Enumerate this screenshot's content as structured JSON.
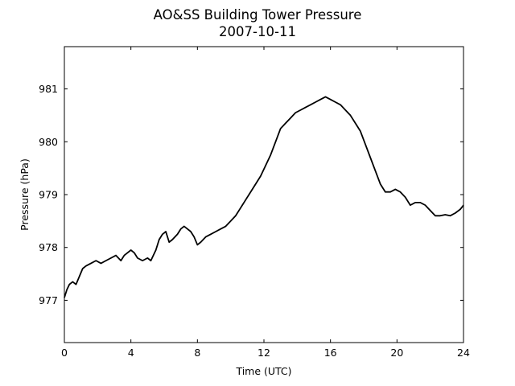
{
  "chart_data": {
    "type": "line",
    "title": "AO&SS Building Tower Pressure",
    "subtitle": "2007-10-11",
    "xlabel": "Time (UTC)",
    "ylabel": "Pressure (hPa)",
    "xlim": [
      0,
      24
    ],
    "ylim": [
      976.2,
      981.8
    ],
    "x_ticks": [
      0,
      4,
      8,
      12,
      16,
      20,
      24
    ],
    "y_ticks": [
      977,
      978,
      979,
      980,
      981
    ],
    "grid": false,
    "series": [
      {
        "color": "#000000",
        "points": [
          [
            0.0,
            977.05
          ],
          [
            0.15,
            977.2
          ],
          [
            0.3,
            977.3
          ],
          [
            0.5,
            977.35
          ],
          [
            0.7,
            977.3
          ],
          [
            0.9,
            977.45
          ],
          [
            1.1,
            977.6
          ],
          [
            1.3,
            977.65
          ],
          [
            1.6,
            977.7
          ],
          [
            1.9,
            977.75
          ],
          [
            2.2,
            977.7
          ],
          [
            2.5,
            977.75
          ],
          [
            2.8,
            977.8
          ],
          [
            3.1,
            977.85
          ],
          [
            3.4,
            977.75
          ],
          [
            3.6,
            977.85
          ],
          [
            3.8,
            977.9
          ],
          [
            4.0,
            977.95
          ],
          [
            4.2,
            977.9
          ],
          [
            4.4,
            977.8
          ],
          [
            4.7,
            977.75
          ],
          [
            5.0,
            977.8
          ],
          [
            5.2,
            977.75
          ],
          [
            5.5,
            977.95
          ],
          [
            5.7,
            978.15
          ],
          [
            5.9,
            978.25
          ],
          [
            6.1,
            978.3
          ],
          [
            6.3,
            978.1
          ],
          [
            6.5,
            978.15
          ],
          [
            6.8,
            978.25
          ],
          [
            7.0,
            978.35
          ],
          [
            7.2,
            978.4
          ],
          [
            7.4,
            978.35
          ],
          [
            7.6,
            978.3
          ],
          [
            7.8,
            978.2
          ],
          [
            8.0,
            978.05
          ],
          [
            8.2,
            978.1
          ],
          [
            8.5,
            978.2
          ],
          [
            8.8,
            978.25
          ],
          [
            9.1,
            978.3
          ],
          [
            9.4,
            978.35
          ],
          [
            9.7,
            978.4
          ],
          [
            10.0,
            978.5
          ],
          [
            10.3,
            978.6
          ],
          [
            10.6,
            978.75
          ],
          [
            10.9,
            978.9
          ],
          [
            11.2,
            979.05
          ],
          [
            11.5,
            979.2
          ],
          [
            11.8,
            979.35
          ],
          [
            12.1,
            979.55
          ],
          [
            12.4,
            979.75
          ],
          [
            12.7,
            980.0
          ],
          [
            13.0,
            980.25
          ],
          [
            13.3,
            980.35
          ],
          [
            13.6,
            980.45
          ],
          [
            13.9,
            980.55
          ],
          [
            14.2,
            980.6
          ],
          [
            14.5,
            980.65
          ],
          [
            14.8,
            980.7
          ],
          [
            15.1,
            980.75
          ],
          [
            15.4,
            980.8
          ],
          [
            15.7,
            980.85
          ],
          [
            16.0,
            980.8
          ],
          [
            16.3,
            980.75
          ],
          [
            16.6,
            980.7
          ],
          [
            16.9,
            980.6
          ],
          [
            17.2,
            980.5
          ],
          [
            17.5,
            980.35
          ],
          [
            17.8,
            980.2
          ],
          [
            18.1,
            979.95
          ],
          [
            18.4,
            979.7
          ],
          [
            18.7,
            979.45
          ],
          [
            19.0,
            979.2
          ],
          [
            19.3,
            979.05
          ],
          [
            19.6,
            979.05
          ],
          [
            19.9,
            979.1
          ],
          [
            20.2,
            979.05
          ],
          [
            20.5,
            978.95
          ],
          [
            20.8,
            978.8
          ],
          [
            21.1,
            978.85
          ],
          [
            21.4,
            978.85
          ],
          [
            21.7,
            978.8
          ],
          [
            22.0,
            978.7
          ],
          [
            22.3,
            978.6
          ],
          [
            22.6,
            978.6
          ],
          [
            22.9,
            978.62
          ],
          [
            23.2,
            978.6
          ],
          [
            23.5,
            978.65
          ],
          [
            23.8,
            978.72
          ],
          [
            24.0,
            978.8
          ]
        ]
      }
    ]
  }
}
